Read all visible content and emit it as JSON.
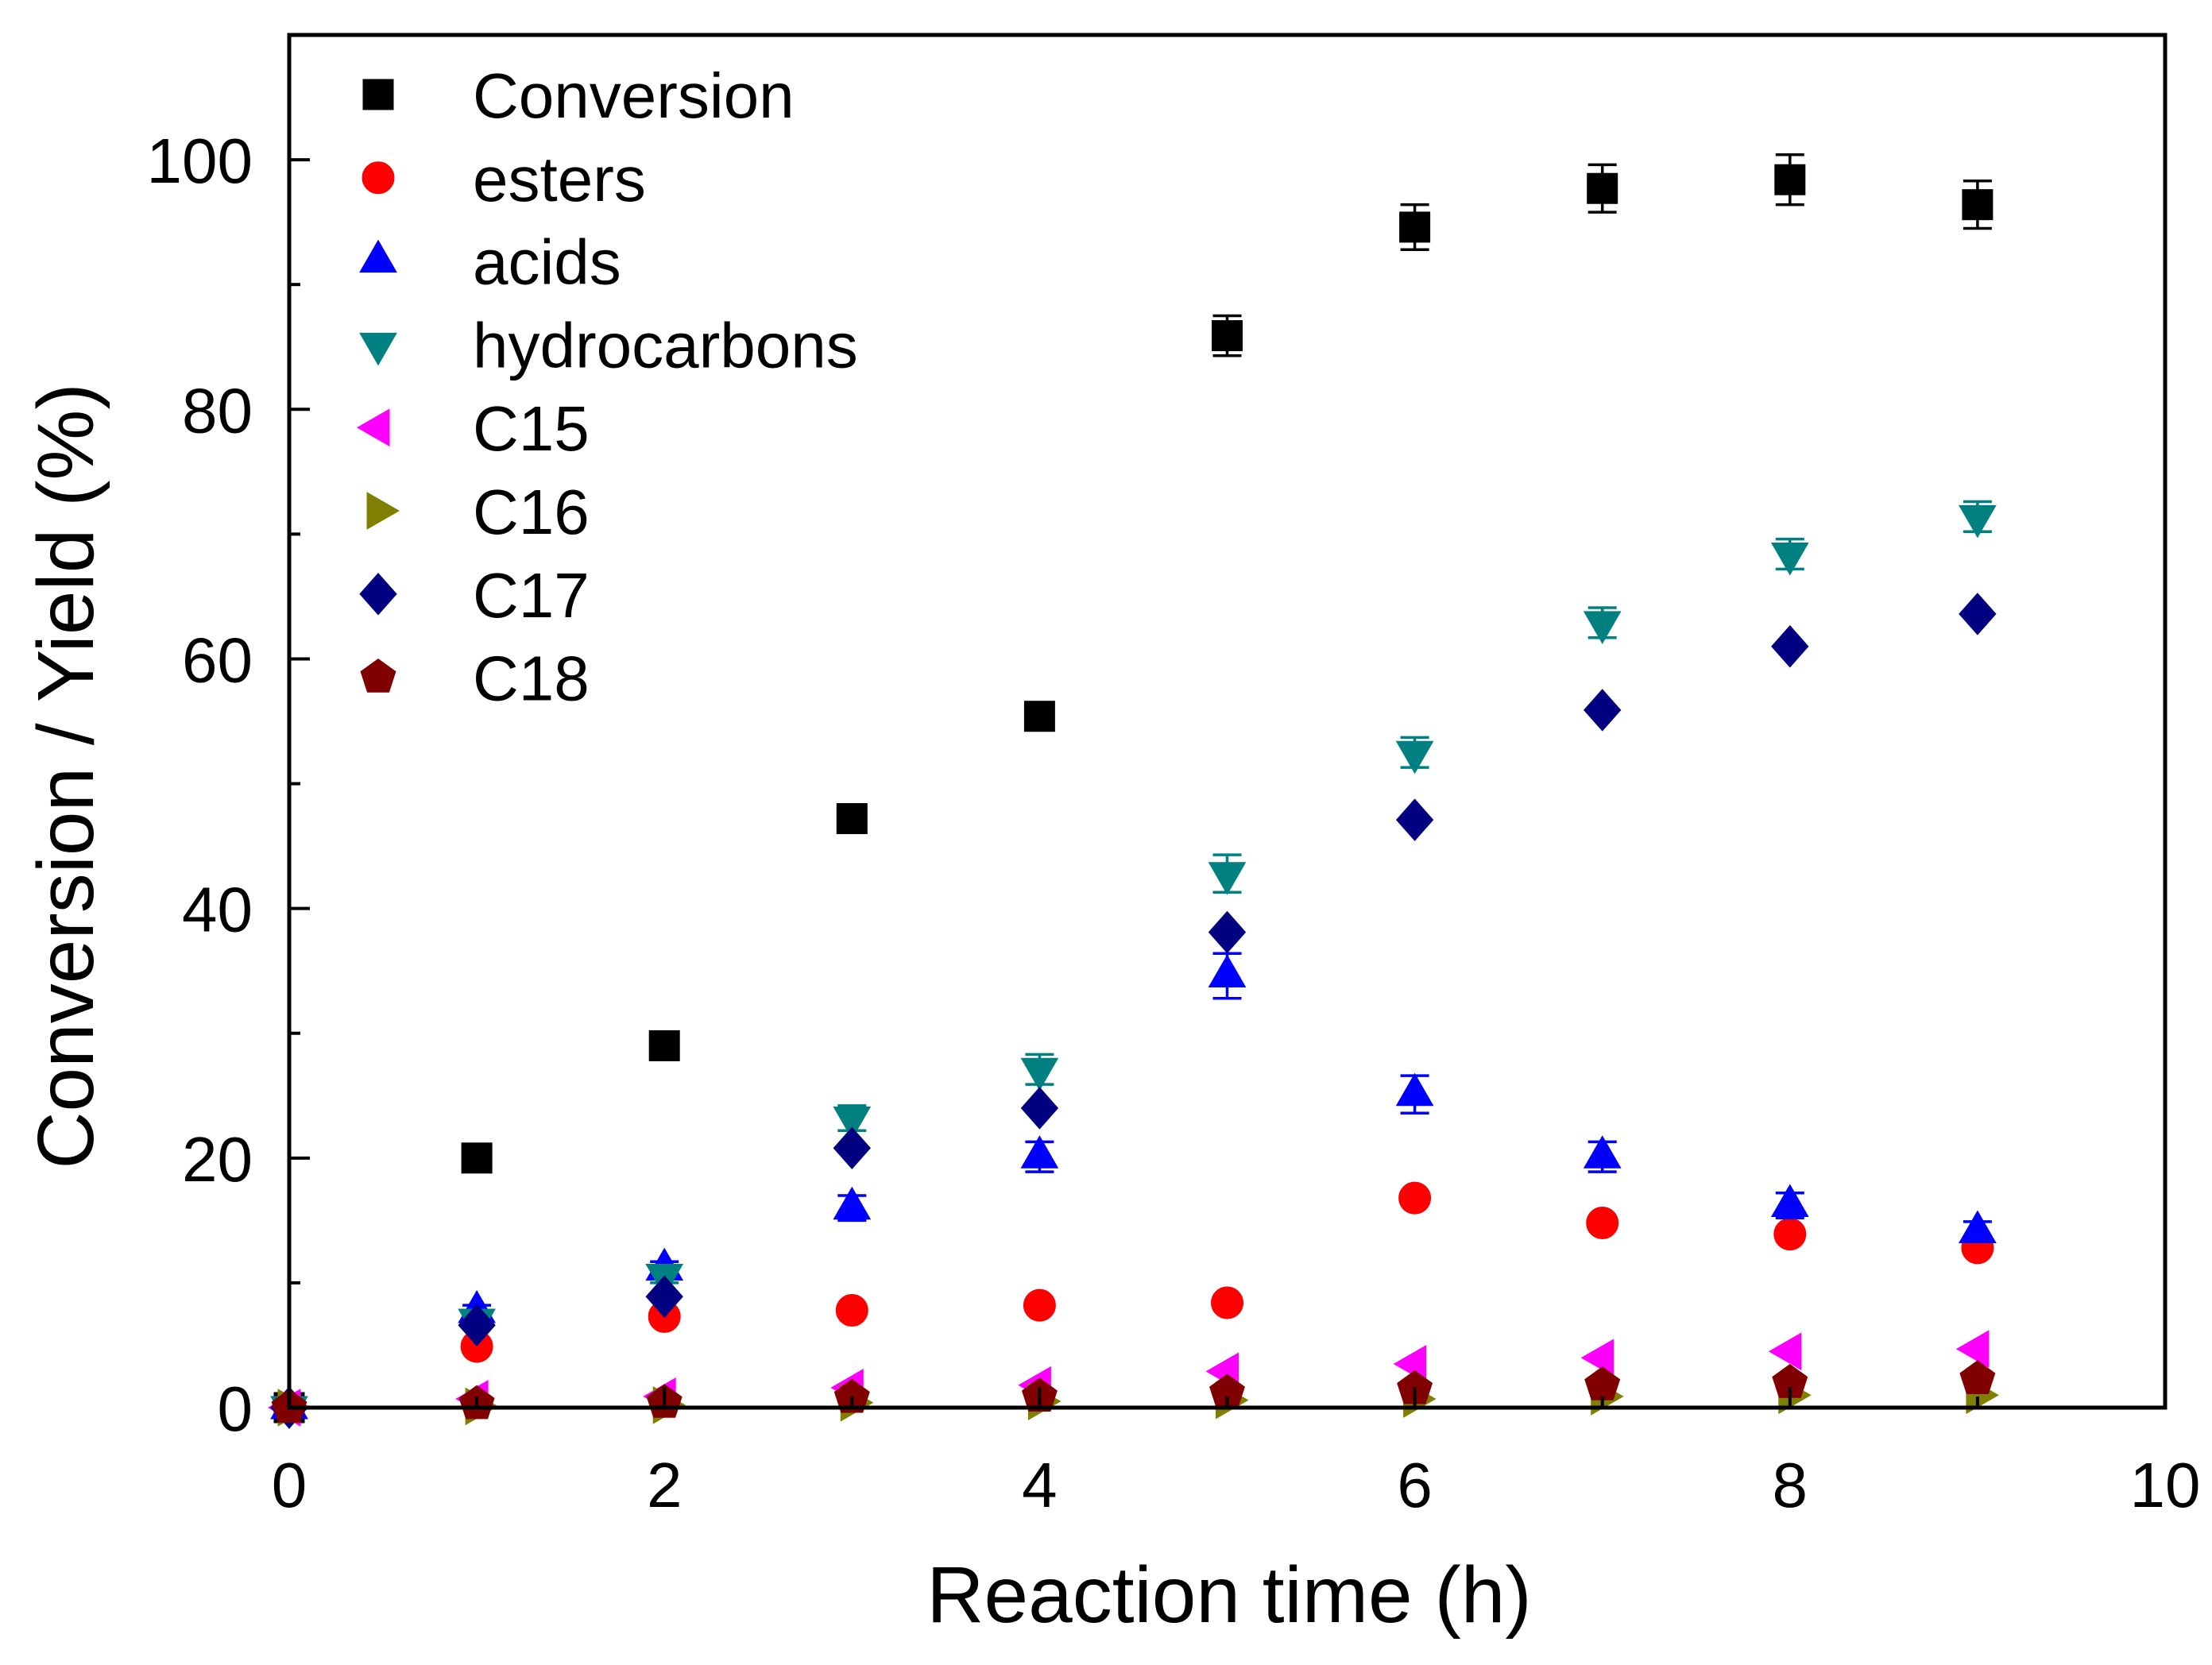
{
  "chart_data": {
    "type": "scatter",
    "xlabel": "Reaction time (h)",
    "ylabel": "Conversion / Yield (%)",
    "xlim": [
      0,
      10
    ],
    "ylim": [
      0,
      110
    ],
    "xticks": [
      0,
      2,
      4,
      6,
      8,
      10
    ],
    "yticks": [
      0,
      20,
      40,
      60,
      80,
      100
    ],
    "grid": false,
    "legend": "top-left",
    "x": [
      0,
      1,
      2,
      3,
      4,
      5,
      6,
      7,
      8,
      9
    ],
    "series": [
      {
        "name": "Conversion",
        "color": "#000000",
        "marker": "square",
        "values": [
          0,
          20.0,
          29.0,
          47.2,
          55.4,
          85.9,
          94.6,
          97.7,
          98.4,
          96.4
        ],
        "errors": [
          0,
          0.5,
          0.6,
          0.8,
          1.0,
          1.6,
          1.8,
          1.9,
          2.0,
          1.9
        ]
      },
      {
        "name": "esters",
        "color": "#ff0000",
        "marker": "circle",
        "values": [
          0,
          4.9,
          7.3,
          7.8,
          8.2,
          8.4,
          16.8,
          14.8,
          13.9,
          12.8
        ]
      },
      {
        "name": "acids",
        "color": "#0000ff",
        "marker": "triangle-up",
        "values": [
          0,
          7.7,
          11.1,
          16.0,
          20.1,
          34.6,
          25.1,
          20.1,
          16.2,
          14.1
        ],
        "errors": [
          0,
          0.5,
          0.6,
          1.0,
          1.2,
          1.8,
          1.5,
          1.2,
          1.0,
          0.8
        ]
      },
      {
        "name": "hydrocarbons",
        "color": "#008080",
        "marker": "triangle-down",
        "values": [
          0,
          7.0,
          10.6,
          23.2,
          27.1,
          42.8,
          52.5,
          62.9,
          68.4,
          71.4
        ],
        "errors": [
          0,
          0.5,
          0.6,
          1.0,
          1.2,
          1.5,
          1.2,
          1.2,
          1.2,
          1.2
        ]
      },
      {
        "name": "C15",
        "color": "#ff00ff",
        "marker": "triangle-left",
        "values": [
          0,
          0.7,
          0.9,
          1.6,
          1.8,
          2.9,
          3.5,
          4.0,
          4.5,
          4.7
        ]
      },
      {
        "name": "C16",
        "color": "#808000",
        "marker": "triangle-right",
        "values": [
          0,
          0.1,
          0.2,
          0.4,
          0.5,
          0.6,
          0.7,
          0.9,
          1.0,
          1.0
        ]
      },
      {
        "name": "C17",
        "color": "#000080",
        "marker": "diamond",
        "values": [
          0,
          6.6,
          8.9,
          20.8,
          24.0,
          38.1,
          47.1,
          55.9,
          61.0,
          63.6
        ]
      },
      {
        "name": "C18",
        "color": "#800000",
        "marker": "pentagon",
        "values": [
          0,
          0.3,
          0.4,
          0.8,
          0.9,
          1.2,
          1.5,
          1.8,
          2.0,
          2.3
        ]
      }
    ]
  }
}
